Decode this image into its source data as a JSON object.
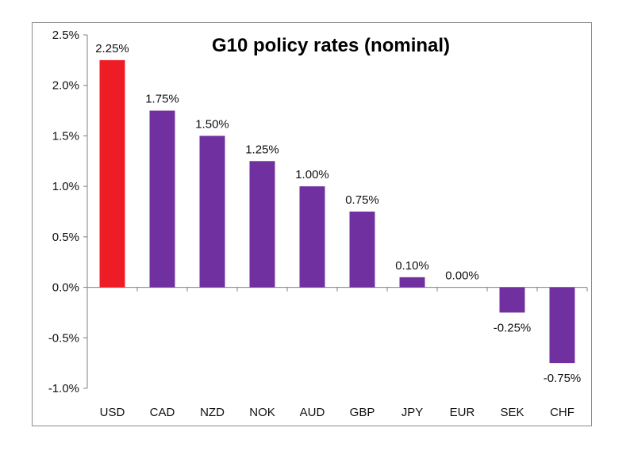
{
  "chart_data": {
    "type": "bar",
    "title": "G10 policy rates (nominal)",
    "xlabel": "",
    "ylabel": "",
    "categories": [
      "USD",
      "CAD",
      "NZD",
      "NOK",
      "AUD",
      "GBP",
      "JPY",
      "EUR",
      "SEK",
      "CHF"
    ],
    "values": [
      2.25,
      1.75,
      1.5,
      1.25,
      1.0,
      0.75,
      0.1,
      0.0,
      -0.25,
      -0.75
    ],
    "data_labels": [
      "2.25%",
      "1.75%",
      "1.50%",
      "1.25%",
      "1.00%",
      "0.75%",
      "0.10%",
      "0.00%",
      "-0.25%",
      "-0.75%"
    ],
    "ylim": [
      -1.0,
      2.5
    ],
    "yticks": [
      2.5,
      2.0,
      1.5,
      1.0,
      0.5,
      0.0,
      -0.5,
      -1.0
    ],
    "ytick_labels": [
      "2.5%",
      "2.0%",
      "1.5%",
      "1.0%",
      "0.5%",
      "0.0%",
      "-0.5%",
      "-1.0%"
    ],
    "grid": false,
    "legend": "none",
    "colors": {
      "highlight": "#ee1c25",
      "default": "#7030a0",
      "axis": "#808080"
    },
    "highlight_category": "USD"
  }
}
